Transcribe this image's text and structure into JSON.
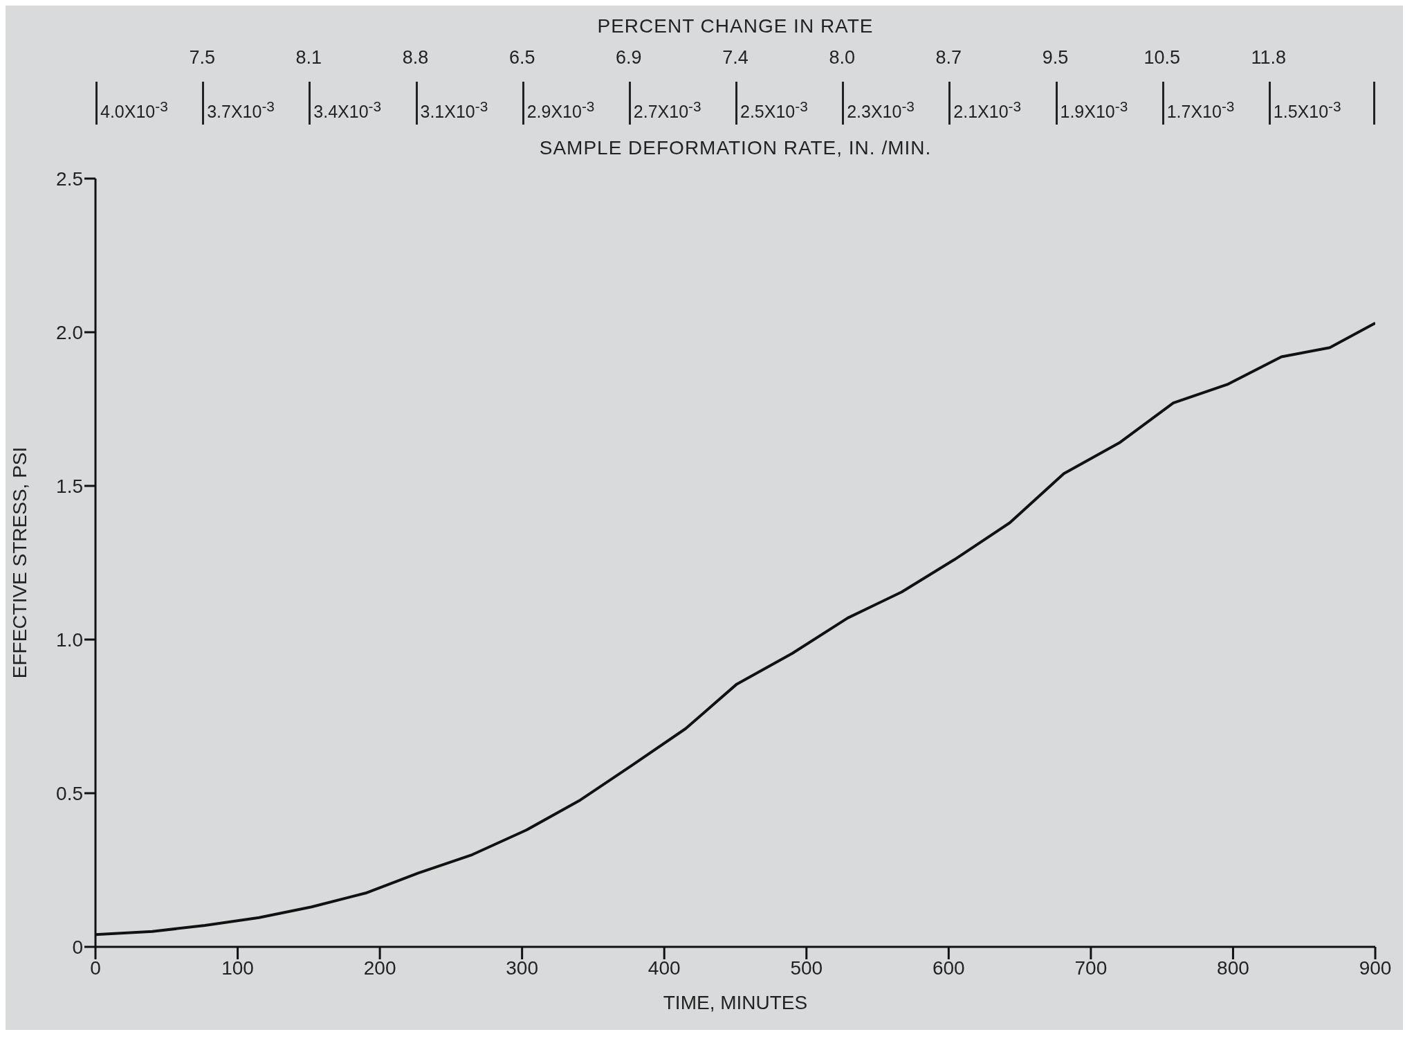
{
  "chart_data": {
    "type": "line",
    "xlabel": "TIME, MINUTES",
    "ylabel": "EFFECTIVE STRESS, PSI",
    "annotations": [
      "PERCENT CHANGE IN RATE",
      "7.5",
      "8.1",
      "8.8",
      "6.5",
      "6.9",
      "7.4",
      "8.0",
      "8.7",
      "9.5",
      "10.5",
      "11.8",
      "4.0X10$^{-3}$",
      "3.7X10$^{-3}$",
      "3.4X10$^{-3}$",
      "3.1X10$^{-3}$",
      "2.9X10$^{-3}$",
      "2.7X10$^{-3}$",
      "2.5X10$^{-3}$",
      "2.3X10$^{-3}$",
      "2.1X10$^{-3}$",
      "1.9X10$^{-3}$",
      "1.7X10$^{-3}$",
      "1.5X10$^{-3}$",
      "SAMPLE DEFORMATION RATE, IN. /MIN."
    ],
    "x": [
      0,
      40,
      77,
      115,
      152,
      190,
      227,
      265,
      303,
      340,
      377,
      415,
      451,
      490,
      529,
      567,
      604,
      643,
      681,
      720,
      758,
      796,
      834,
      868,
      900
    ],
    "series": [
      {
        "color": "#111111",
        "values": [
          0.04,
          0.05,
          0.07,
          0.095,
          0.13,
          0.175,
          0.24,
          0.3,
          0.38,
          0.475,
          0.59,
          0.71,
          0.855,
          0.955,
          1.07,
          1.155,
          1.26,
          1.38,
          1.54,
          1.64,
          1.77,
          1.83,
          1.92,
          1.95,
          2.03
        ]
      }
    ],
    "xlim": [
      0,
      900
    ],
    "xticks": [
      0,
      100,
      200,
      300,
      400,
      500,
      600,
      700,
      800,
      900
    ],
    "ylim": [
      0,
      2.5
    ],
    "yticks": [
      0,
      {
        "value": 0.5,
        "label": "0.5"
      },
      {
        "value": 1,
        "label": "1.0"
      },
      {
        "value": 1.5,
        "label": "1.5"
      },
      {
        "value": 2,
        "label": "2.0"
      },
      {
        "value": 2.5,
        "label": "2.5"
      }
    ],
    "grid": false,
    "legend": false,
    "marker": "none",
    "line_style": "solid"
  }
}
